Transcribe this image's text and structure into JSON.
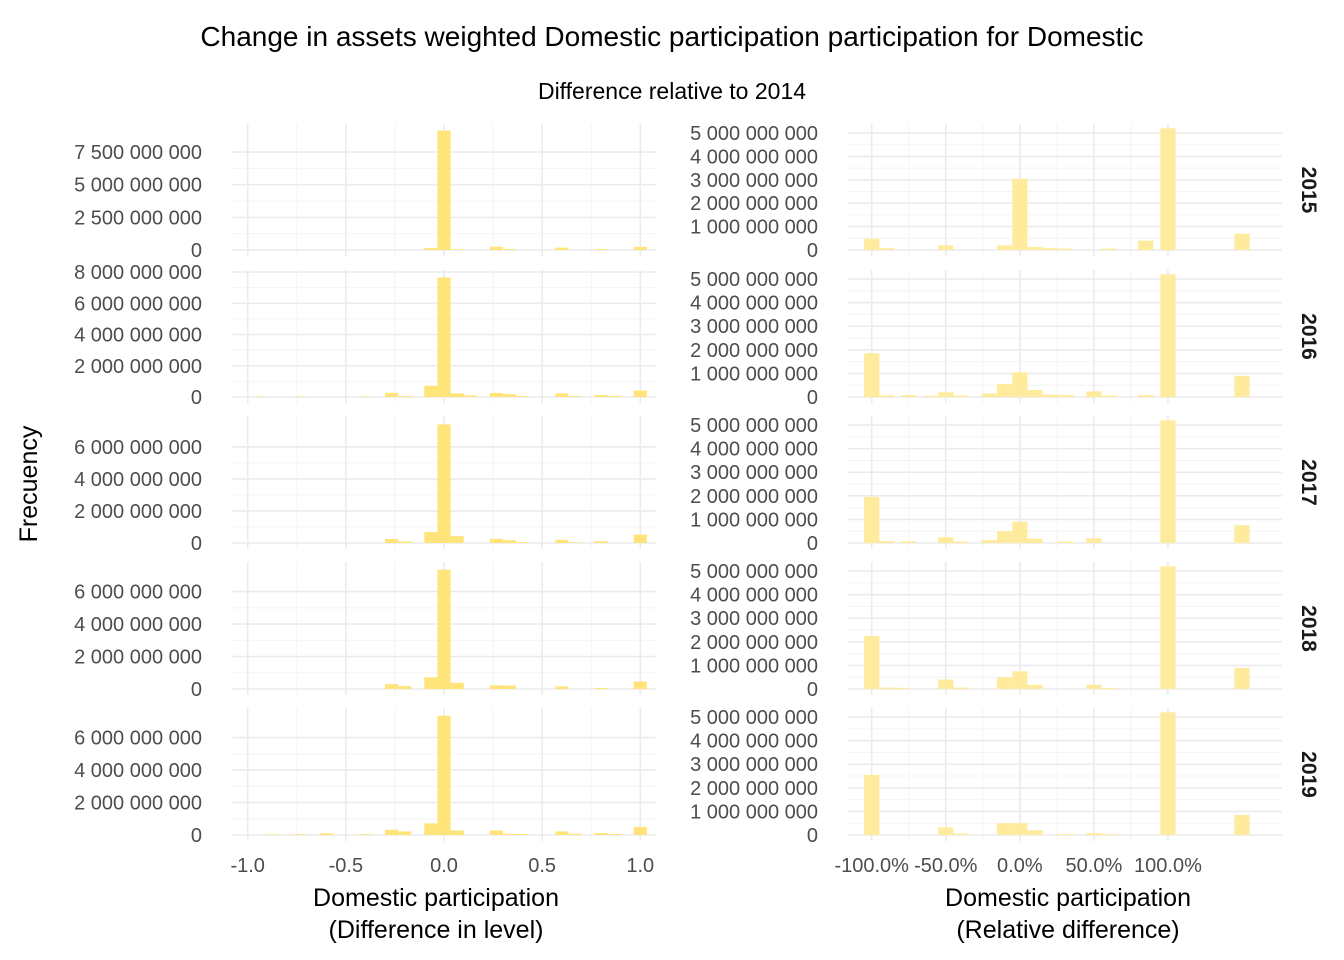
{
  "title": "Change in assets weighted Domestic participation participation for Domestic",
  "subtitle": "Difference relative to 2014",
  "ylabel": "Frecuency",
  "colors": {
    "fill_left": "#FFE47A",
    "fill_right": "#FFEB9E",
    "grid": "#ebebeb",
    "text": "#4d4d4d"
  },
  "chart_data": {
    "type": "bar",
    "facet_rows": [
      "2015",
      "2016",
      "2017",
      "2018",
      "2019"
    ],
    "panels": [
      {
        "column": "left",
        "xlabel_line1": "Domestic participation",
        "xlabel_line2": "(Difference in level)",
        "x_ticks": [
          -1.0,
          -0.5,
          0.0,
          0.5,
          1.0
        ],
        "x_tick_labels": [
          "-1.0",
          "-0.5",
          "0.0",
          "0.5",
          "1.0"
        ],
        "xlim": [
          -1.08,
          1.08
        ],
        "bin_width": 0.0667,
        "rows": [
          {
            "year": "2015",
            "ylim": [
              0,
              9500000000
            ],
            "y_ticks": [
              0,
              2500000000,
              5000000000,
              7500000000
            ],
            "y_tick_labels": [
              "0",
              "2 500 000 000",
              "5 000 000 000",
              "7 500 000 000"
            ],
            "bins": [
              {
                "x": -0.067,
                "y": 150000000
              },
              {
                "x": 0.0,
                "y": 9150000000
              },
              {
                "x": 0.067,
                "y": 60000000
              },
              {
                "x": 0.267,
                "y": 250000000
              },
              {
                "x": 0.333,
                "y": 80000000
              },
              {
                "x": 0.6,
                "y": 180000000
              },
              {
                "x": 0.8,
                "y": 70000000
              },
              {
                "x": 1.0,
                "y": 240000000
              }
            ]
          },
          {
            "year": "2016",
            "ylim": [
              0,
              8000000000
            ],
            "y_ticks": [
              0,
              2000000000,
              4000000000,
              6000000000,
              8000000000
            ],
            "y_tick_labels": [
              "0",
              "2 000 000 000",
              "4 000 000 000",
              "6 000 000 000",
              "8 000 000 000"
            ],
            "bins": [
              {
                "x": -0.933,
                "y": 30000000
              },
              {
                "x": -0.733,
                "y": 30000000
              },
              {
                "x": -0.4,
                "y": 30000000
              },
              {
                "x": -0.267,
                "y": 270000000
              },
              {
                "x": -0.2,
                "y": 60000000
              },
              {
                "x": -0.067,
                "y": 720000000
              },
              {
                "x": 0.0,
                "y": 7650000000
              },
              {
                "x": 0.067,
                "y": 230000000
              },
              {
                "x": 0.133,
                "y": 100000000
              },
              {
                "x": 0.267,
                "y": 260000000
              },
              {
                "x": 0.333,
                "y": 180000000
              },
              {
                "x": 0.4,
                "y": 60000000
              },
              {
                "x": 0.6,
                "y": 230000000
              },
              {
                "x": 0.667,
                "y": 60000000
              },
              {
                "x": 0.8,
                "y": 130000000
              },
              {
                "x": 0.867,
                "y": 60000000
              },
              {
                "x": 1.0,
                "y": 420000000
              }
            ]
          },
          {
            "year": "2017",
            "ylim": [
              0,
              7800000000
            ],
            "y_ticks": [
              0,
              2000000000,
              4000000000,
              6000000000
            ],
            "y_tick_labels": [
              "0",
              "2 000 000 000",
              "4 000 000 000",
              "6 000 000 000"
            ],
            "bins": [
              {
                "x": -0.267,
                "y": 250000000
              },
              {
                "x": -0.2,
                "y": 90000000
              },
              {
                "x": -0.067,
                "y": 680000000
              },
              {
                "x": 0.0,
                "y": 7400000000
              },
              {
                "x": 0.067,
                "y": 430000000
              },
              {
                "x": 0.267,
                "y": 260000000
              },
              {
                "x": 0.333,
                "y": 180000000
              },
              {
                "x": 0.4,
                "y": 50000000
              },
              {
                "x": 0.6,
                "y": 200000000
              },
              {
                "x": 0.667,
                "y": 50000000
              },
              {
                "x": 0.8,
                "y": 110000000
              },
              {
                "x": 1.0,
                "y": 520000000
              }
            ]
          },
          {
            "year": "2018",
            "ylim": [
              0,
              7700000000
            ],
            "y_ticks": [
              0,
              2000000000,
              4000000000,
              6000000000
            ],
            "y_tick_labels": [
              "0",
              "2 000 000 000",
              "4 000 000 000",
              "6 000 000 000"
            ],
            "bins": [
              {
                "x": -0.267,
                "y": 300000000
              },
              {
                "x": -0.2,
                "y": 180000000
              },
              {
                "x": -0.067,
                "y": 720000000
              },
              {
                "x": 0.0,
                "y": 7350000000
              },
              {
                "x": 0.067,
                "y": 380000000
              },
              {
                "x": 0.267,
                "y": 230000000
              },
              {
                "x": 0.333,
                "y": 210000000
              },
              {
                "x": 0.6,
                "y": 160000000
              },
              {
                "x": 0.8,
                "y": 60000000
              },
              {
                "x": 1.0,
                "y": 460000000
              }
            ]
          },
          {
            "year": "2019",
            "ylim": [
              0,
              7700000000
            ],
            "y_ticks": [
              0,
              2000000000,
              4000000000,
              6000000000
            ],
            "y_tick_labels": [
              "0",
              "2 000 000 000",
              "4 000 000 000",
              "6 000 000 000"
            ],
            "bins": [
              {
                "x": -0.867,
                "y": 40000000
              },
              {
                "x": -0.733,
                "y": 50000000
              },
              {
                "x": -0.6,
                "y": 100000000
              },
              {
                "x": -0.4,
                "y": 50000000
              },
              {
                "x": -0.267,
                "y": 320000000
              },
              {
                "x": -0.2,
                "y": 220000000
              },
              {
                "x": -0.067,
                "y": 720000000
              },
              {
                "x": 0.0,
                "y": 7350000000
              },
              {
                "x": 0.067,
                "y": 280000000
              },
              {
                "x": 0.267,
                "y": 280000000
              },
              {
                "x": 0.333,
                "y": 80000000
              },
              {
                "x": 0.4,
                "y": 60000000
              },
              {
                "x": 0.6,
                "y": 220000000
              },
              {
                "x": 0.667,
                "y": 80000000
              },
              {
                "x": 0.8,
                "y": 120000000
              },
              {
                "x": 0.867,
                "y": 60000000
              },
              {
                "x": 1.0,
                "y": 500000000
              }
            ]
          }
        ]
      },
      {
        "column": "right",
        "xlabel_line1": "Domestic participation",
        "xlabel_line2": "(Relative difference)",
        "x_ticks": [
          -1.0,
          -0.5,
          0.0,
          0.5,
          1.0
        ],
        "x_tick_labels": [
          "-100.0%",
          "-50.0%",
          "0.0%",
          "50.0%",
          "100.0%"
        ],
        "xlim": [
          -1.16,
          1.77
        ],
        "bin_width": 0.103,
        "rows": [
          {
            "year": "2015",
            "ylim": [
              0,
              5300000000
            ],
            "y_ticks": [
              0,
              1000000000,
              2000000000,
              3000000000,
              4000000000,
              5000000000
            ],
            "y_tick_labels": [
              "0",
              "1 000 000 000",
              "2 000 000 000",
              "3 000 000 000",
              "4 000 000 000",
              "5 000 000 000"
            ],
            "bins": [
              {
                "x": -1.0,
                "y": 480000000
              },
              {
                "x": -0.897,
                "y": 80000000
              },
              {
                "x": -0.5,
                "y": 200000000
              },
              {
                "x": -0.103,
                "y": 200000000
              },
              {
                "x": 0.0,
                "y": 3050000000
              },
              {
                "x": 0.103,
                "y": 130000000
              },
              {
                "x": 0.206,
                "y": 80000000
              },
              {
                "x": 0.309,
                "y": 60000000
              },
              {
                "x": 0.6,
                "y": 60000000
              },
              {
                "x": 0.85,
                "y": 400000000
              },
              {
                "x": 1.0,
                "y": 5200000000
              },
              {
                "x": 1.5,
                "y": 700000000
              }
            ]
          },
          {
            "year": "2016",
            "ylim": [
              0,
              5300000000
            ],
            "y_ticks": [
              0,
              1000000000,
              2000000000,
              3000000000,
              4000000000,
              5000000000
            ],
            "y_tick_labels": [
              "0",
              "1 000 000 000",
              "2 000 000 000",
              "3 000 000 000",
              "4 000 000 000",
              "5 000 000 000"
            ],
            "bins": [
              {
                "x": -1.0,
                "y": 1850000000
              },
              {
                "x": -0.897,
                "y": 70000000
              },
              {
                "x": -0.75,
                "y": 80000000
              },
              {
                "x": -0.6,
                "y": 50000000
              },
              {
                "x": -0.5,
                "y": 200000000
              },
              {
                "x": -0.4,
                "y": 60000000
              },
              {
                "x": -0.206,
                "y": 150000000
              },
              {
                "x": -0.103,
                "y": 550000000
              },
              {
                "x": 0.0,
                "y": 1050000000
              },
              {
                "x": 0.103,
                "y": 300000000
              },
              {
                "x": 0.206,
                "y": 100000000
              },
              {
                "x": 0.309,
                "y": 80000000
              },
              {
                "x": 0.5,
                "y": 240000000
              },
              {
                "x": 0.6,
                "y": 60000000
              },
              {
                "x": 0.85,
                "y": 80000000
              },
              {
                "x": 1.0,
                "y": 5200000000
              },
              {
                "x": 1.5,
                "y": 900000000
              }
            ]
          },
          {
            "year": "2017",
            "ylim": [
              0,
              5300000000
            ],
            "y_ticks": [
              0,
              1000000000,
              2000000000,
              3000000000,
              4000000000,
              5000000000
            ],
            "y_tick_labels": [
              "0",
              "1 000 000 000",
              "2 000 000 000",
              "3 000 000 000",
              "4 000 000 000",
              "5 000 000 000"
            ],
            "bins": [
              {
                "x": -1.0,
                "y": 1950000000
              },
              {
                "x": -0.897,
                "y": 80000000
              },
              {
                "x": -0.75,
                "y": 70000000
              },
              {
                "x": -0.5,
                "y": 250000000
              },
              {
                "x": -0.4,
                "y": 60000000
              },
              {
                "x": -0.206,
                "y": 120000000
              },
              {
                "x": -0.103,
                "y": 500000000
              },
              {
                "x": 0.0,
                "y": 900000000
              },
              {
                "x": 0.103,
                "y": 180000000
              },
              {
                "x": 0.309,
                "y": 60000000
              },
              {
                "x": 0.5,
                "y": 200000000
              },
              {
                "x": 1.0,
                "y": 5200000000
              },
              {
                "x": 1.5,
                "y": 750000000
              }
            ]
          },
          {
            "year": "2018",
            "ylim": [
              0,
              5300000000
            ],
            "y_ticks": [
              0,
              1000000000,
              2000000000,
              3000000000,
              4000000000,
              5000000000
            ],
            "y_tick_labels": [
              "0",
              "1 000 000 000",
              "2 000 000 000",
              "3 000 000 000",
              "4 000 000 000",
              "5 000 000 000"
            ],
            "bins": [
              {
                "x": -1.0,
                "y": 2250000000
              },
              {
                "x": -0.897,
                "y": 60000000
              },
              {
                "x": -0.8,
                "y": 50000000
              },
              {
                "x": -0.5,
                "y": 400000000
              },
              {
                "x": -0.4,
                "y": 60000000
              },
              {
                "x": -0.103,
                "y": 500000000
              },
              {
                "x": 0.0,
                "y": 750000000
              },
              {
                "x": 0.103,
                "y": 180000000
              },
              {
                "x": 0.5,
                "y": 180000000
              },
              {
                "x": 0.6,
                "y": 40000000
              },
              {
                "x": 1.0,
                "y": 5200000000
              },
              {
                "x": 1.5,
                "y": 900000000
              }
            ]
          },
          {
            "year": "2019",
            "ylim": [
              0,
              5300000000
            ],
            "y_ticks": [
              0,
              1000000000,
              2000000000,
              3000000000,
              4000000000,
              5000000000
            ],
            "y_tick_labels": [
              "0",
              "1 000 000 000",
              "2 000 000 000",
              "3 000 000 000",
              "4 000 000 000",
              "5 000 000 000"
            ],
            "bins": [
              {
                "x": -1.0,
                "y": 2550000000
              },
              {
                "x": -0.5,
                "y": 320000000
              },
              {
                "x": -0.4,
                "y": 60000000
              },
              {
                "x": -0.103,
                "y": 500000000
              },
              {
                "x": 0.0,
                "y": 500000000
              },
              {
                "x": 0.103,
                "y": 200000000
              },
              {
                "x": 0.309,
                "y": 40000000
              },
              {
                "x": 0.5,
                "y": 80000000
              },
              {
                "x": 0.6,
                "y": 40000000
              },
              {
                "x": 1.0,
                "y": 5200000000
              },
              {
                "x": 1.5,
                "y": 850000000
              }
            ]
          }
        ]
      }
    ]
  }
}
